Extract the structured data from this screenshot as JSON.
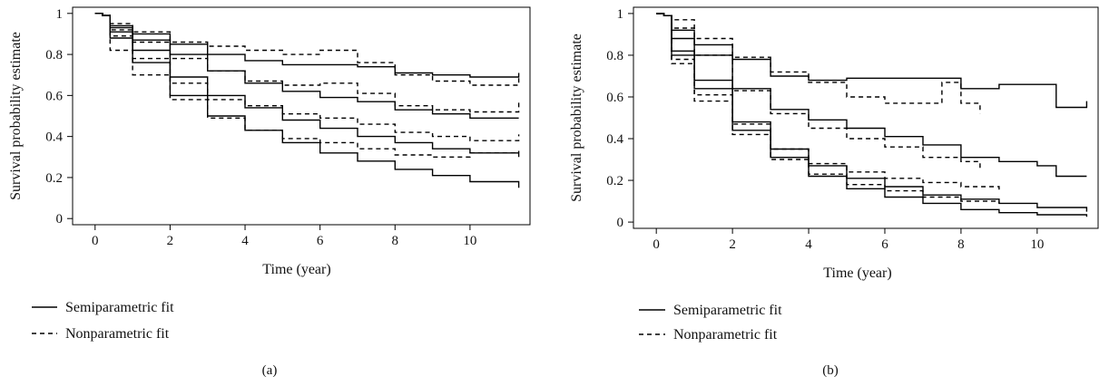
{
  "legend": {
    "solid_label": "Semiparametric fit",
    "dashed_label": "Nonparametric fit"
  },
  "chart_data": [
    {
      "type": "line",
      "panel_label": "(a)",
      "xlabel": "Time (year)",
      "ylabel": "Survival probability estimate",
      "xlim": [
        -0.6,
        11.6
      ],
      "ylim": [
        -0.03,
        1.03
      ],
      "xticks": [
        0,
        2,
        4,
        6,
        8,
        10
      ],
      "yticks": [
        0,
        0.2,
        0.4,
        0.6,
        0.8,
        1
      ],
      "xtick_labels": [
        "0",
        "2",
        "4",
        "6",
        "8",
        "10"
      ],
      "ytick_labels": [
        "0",
        "0.2",
        "0.4",
        "0.6",
        "0.8",
        "1"
      ],
      "grid": false,
      "legend_position": "below-left",
      "series": [
        {
          "style": "solid",
          "x": [
            0,
            0.2,
            0.4,
            1,
            2,
            3,
            4,
            5,
            6,
            7,
            8,
            9,
            10,
            11.3
          ],
          "y": [
            1,
            0.99,
            0.94,
            0.9,
            0.85,
            0.8,
            0.77,
            0.75,
            0.75,
            0.74,
            0.71,
            0.7,
            0.69,
            0.71
          ]
        },
        {
          "style": "solid",
          "x": [
            0,
            0.2,
            0.4,
            1,
            2,
            3,
            4,
            5,
            6,
            7,
            8,
            9,
            10,
            11.3
          ],
          "y": [
            1,
            0.99,
            0.93,
            0.87,
            0.8,
            0.72,
            0.66,
            0.62,
            0.59,
            0.57,
            0.53,
            0.51,
            0.49,
            0.49
          ]
        },
        {
          "style": "solid",
          "x": [
            0,
            0.2,
            0.4,
            1,
            2,
            3,
            4,
            5,
            6,
            7,
            8,
            9,
            10,
            11.3
          ],
          "y": [
            1,
            0.99,
            0.91,
            0.82,
            0.69,
            0.6,
            0.54,
            0.48,
            0.44,
            0.4,
            0.37,
            0.34,
            0.32,
            0.3
          ]
        },
        {
          "style": "solid",
          "x": [
            0,
            0.2,
            0.4,
            1,
            2,
            3,
            4,
            5,
            6,
            7,
            8,
            9,
            10,
            11.3
          ],
          "y": [
            1,
            0.99,
            0.88,
            0.76,
            0.6,
            0.5,
            0.43,
            0.37,
            0.32,
            0.28,
            0.24,
            0.21,
            0.18,
            0.15
          ]
        },
        {
          "style": "dashed",
          "x": [
            0,
            0.2,
            0.4,
            1,
            2,
            3,
            4,
            5,
            6,
            7,
            8,
            9,
            10,
            11.3
          ],
          "y": [
            1,
            0.99,
            0.95,
            0.91,
            0.86,
            0.84,
            0.82,
            0.8,
            0.82,
            0.76,
            0.7,
            0.67,
            0.65,
            0.69
          ]
        },
        {
          "style": "dashed",
          "x": [
            0,
            0.2,
            0.4,
            1,
            2,
            3,
            4,
            5,
            6,
            7,
            8,
            9,
            10,
            11.3
          ],
          "y": [
            1,
            0.99,
            0.92,
            0.86,
            0.78,
            0.72,
            0.67,
            0.65,
            0.66,
            0.61,
            0.55,
            0.53,
            0.52,
            0.57
          ]
        },
        {
          "style": "dashed",
          "x": [
            0,
            0.2,
            0.4,
            1,
            2,
            3,
            4,
            5,
            6,
            7,
            8,
            9,
            10,
            11.3
          ],
          "y": [
            1,
            0.99,
            0.89,
            0.78,
            0.66,
            0.58,
            0.55,
            0.51,
            0.49,
            0.46,
            0.42,
            0.4,
            0.38,
            0.41
          ]
        },
        {
          "style": "dashed",
          "x": [
            0,
            0.2,
            0.4,
            1,
            2,
            3,
            4,
            5,
            6,
            7,
            8,
            9,
            10,
            11.3
          ],
          "y": [
            1,
            0.99,
            0.82,
            0.7,
            0.58,
            0.49,
            0.43,
            0.39,
            0.37,
            0.34,
            0.31,
            0.3,
            0.32,
            0.33
          ]
        }
      ]
    },
    {
      "type": "line",
      "panel_label": "(b)",
      "xlabel": "Time (year)",
      "ylabel": "Survival probability estimate",
      "xlim": [
        -0.6,
        11.6
      ],
      "ylim": [
        -0.03,
        1.03
      ],
      "xticks": [
        0,
        2,
        4,
        6,
        8,
        10
      ],
      "yticks": [
        0,
        0.2,
        0.4,
        0.6,
        0.8,
        1
      ],
      "xtick_labels": [
        "0",
        "2",
        "4",
        "6",
        "8",
        "10"
      ],
      "ytick_labels": [
        "0",
        "0.2",
        "0.4",
        "0.6",
        "0.8",
        "1"
      ],
      "grid": false,
      "legend_position": "below-left",
      "series": [
        {
          "style": "solid",
          "x": [
            0,
            0.2,
            0.4,
            1,
            2,
            3,
            4,
            5,
            6,
            7,
            8,
            9,
            10,
            10.5,
            11.3
          ],
          "y": [
            1,
            0.99,
            0.92,
            0.85,
            0.78,
            0.7,
            0.68,
            0.69,
            0.69,
            0.69,
            0.64,
            0.66,
            0.66,
            0.55,
            0.58
          ]
        },
        {
          "style": "solid",
          "x": [
            0,
            0.2,
            0.4,
            1,
            2,
            3,
            4,
            5,
            6,
            7,
            8,
            9,
            10,
            10.5,
            11.3
          ],
          "y": [
            1,
            0.99,
            0.88,
            0.8,
            0.64,
            0.54,
            0.49,
            0.45,
            0.41,
            0.37,
            0.31,
            0.29,
            0.27,
            0.22,
            0.22
          ]
        },
        {
          "style": "solid",
          "x": [
            0,
            0.2,
            0.4,
            1,
            2,
            3,
            4,
            5,
            6,
            7,
            8,
            9,
            10,
            11.3
          ],
          "y": [
            1,
            0.99,
            0.82,
            0.68,
            0.48,
            0.35,
            0.27,
            0.21,
            0.17,
            0.13,
            0.11,
            0.09,
            0.07,
            0.05
          ]
        },
        {
          "style": "solid",
          "x": [
            0,
            0.2,
            0.4,
            1,
            2,
            3,
            4,
            5,
            6,
            7,
            8,
            9,
            10,
            11.3
          ],
          "y": [
            1,
            0.99,
            0.8,
            0.64,
            0.44,
            0.31,
            0.22,
            0.16,
            0.12,
            0.09,
            0.06,
            0.045,
            0.035,
            0.025
          ]
        },
        {
          "style": "dashed",
          "x": [
            0,
            0.2,
            0.4,
            1,
            2,
            3,
            4,
            5,
            6,
            7,
            7.5,
            8,
            8.5
          ],
          "y": [
            1,
            0.99,
            0.97,
            0.88,
            0.79,
            0.72,
            0.67,
            0.6,
            0.57,
            0.57,
            0.67,
            0.57,
            0.52
          ]
        },
        {
          "style": "dashed",
          "x": [
            0,
            0.2,
            0.4,
            1,
            2,
            3,
            4,
            5,
            6,
            7,
            8,
            8.5
          ],
          "y": [
            1,
            0.99,
            0.93,
            0.8,
            0.63,
            0.52,
            0.45,
            0.4,
            0.36,
            0.31,
            0.29,
            0.25
          ]
        },
        {
          "style": "dashed",
          "x": [
            0,
            0.2,
            0.4,
            1,
            2,
            3,
            4,
            5,
            6,
            7,
            8,
            9
          ],
          "y": [
            1,
            0.99,
            0.78,
            0.61,
            0.47,
            0.35,
            0.28,
            0.24,
            0.21,
            0.19,
            0.17,
            0.14
          ]
        },
        {
          "style": "dashed",
          "x": [
            0,
            0.2,
            0.4,
            1,
            2,
            3,
            4,
            5,
            6,
            7,
            8,
            9
          ],
          "y": [
            1,
            0.99,
            0.76,
            0.58,
            0.42,
            0.3,
            0.23,
            0.18,
            0.15,
            0.12,
            0.1,
            0.09
          ]
        }
      ]
    }
  ]
}
